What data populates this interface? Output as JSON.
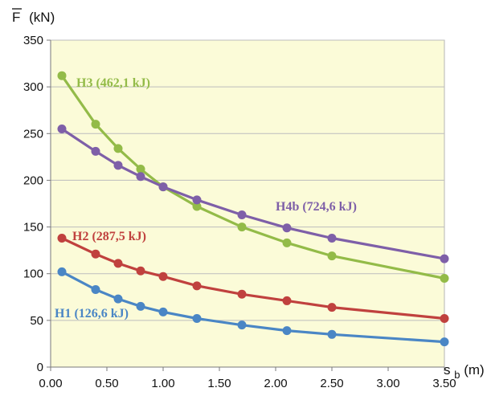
{
  "chart_data": {
    "type": "line",
    "xlabel": "s",
    "xlabel_sub": "b",
    "xlabel_unit": "(m)",
    "ylabel": "F",
    "ylabel_unit": "(kN)",
    "xlim": [
      0,
      3.5
    ],
    "ylim": [
      0,
      350
    ],
    "x_ticks": [
      0,
      0.5,
      1.0,
      1.5,
      2.0,
      2.5,
      3.0,
      3.5
    ],
    "x_tick_labels": [
      "0.00",
      "0.50",
      "1.00",
      "1.50",
      "2.00",
      "2.50",
      "3.00",
      "3.50"
    ],
    "y_ticks": [
      0,
      50,
      100,
      150,
      200,
      250,
      300,
      350
    ],
    "y_tick_labels": [
      "0",
      "50",
      "100",
      "150",
      "200",
      "250",
      "300",
      "350"
    ],
    "grid": "horizontal",
    "plot_background": "#fbfbd8",
    "series": [
      {
        "name": "H1 (126,6 kJ)",
        "color": "#4a86c5",
        "x": [
          0.1,
          0.4,
          0.6,
          0.8,
          1.0,
          1.3,
          1.7,
          2.1,
          2.5,
          3.5
        ],
        "values": [
          102,
          83,
          73,
          65,
          59,
          52,
          45,
          39,
          35,
          27
        ]
      },
      {
        "name": "H2 (287,5 kJ)",
        "color": "#c0413e",
        "x": [
          0.1,
          0.4,
          0.6,
          0.8,
          1.0,
          1.3,
          1.7,
          2.1,
          2.5,
          3.5
        ],
        "values": [
          138,
          121,
          111,
          103,
          97,
          87,
          78,
          71,
          64,
          52
        ]
      },
      {
        "name": "H3 (462,1 kJ)",
        "color": "#93bb48",
        "x": [
          0.1,
          0.4,
          0.6,
          0.8,
          1.0,
          1.3,
          1.7,
          2.1,
          2.5,
          3.5
        ],
        "values": [
          312,
          260,
          234,
          212,
          193,
          172,
          150,
          133,
          119,
          95
        ]
      },
      {
        "name": "H4b (724,6 kJ)",
        "color": "#7e5fa8",
        "x": [
          0.1,
          0.4,
          0.6,
          0.8,
          1.0,
          1.3,
          1.7,
          2.1,
          2.5,
          3.5
        ],
        "values": [
          255,
          231,
          216,
          204,
          193,
          179,
          163,
          149,
          138,
          116
        ]
      }
    ]
  }
}
